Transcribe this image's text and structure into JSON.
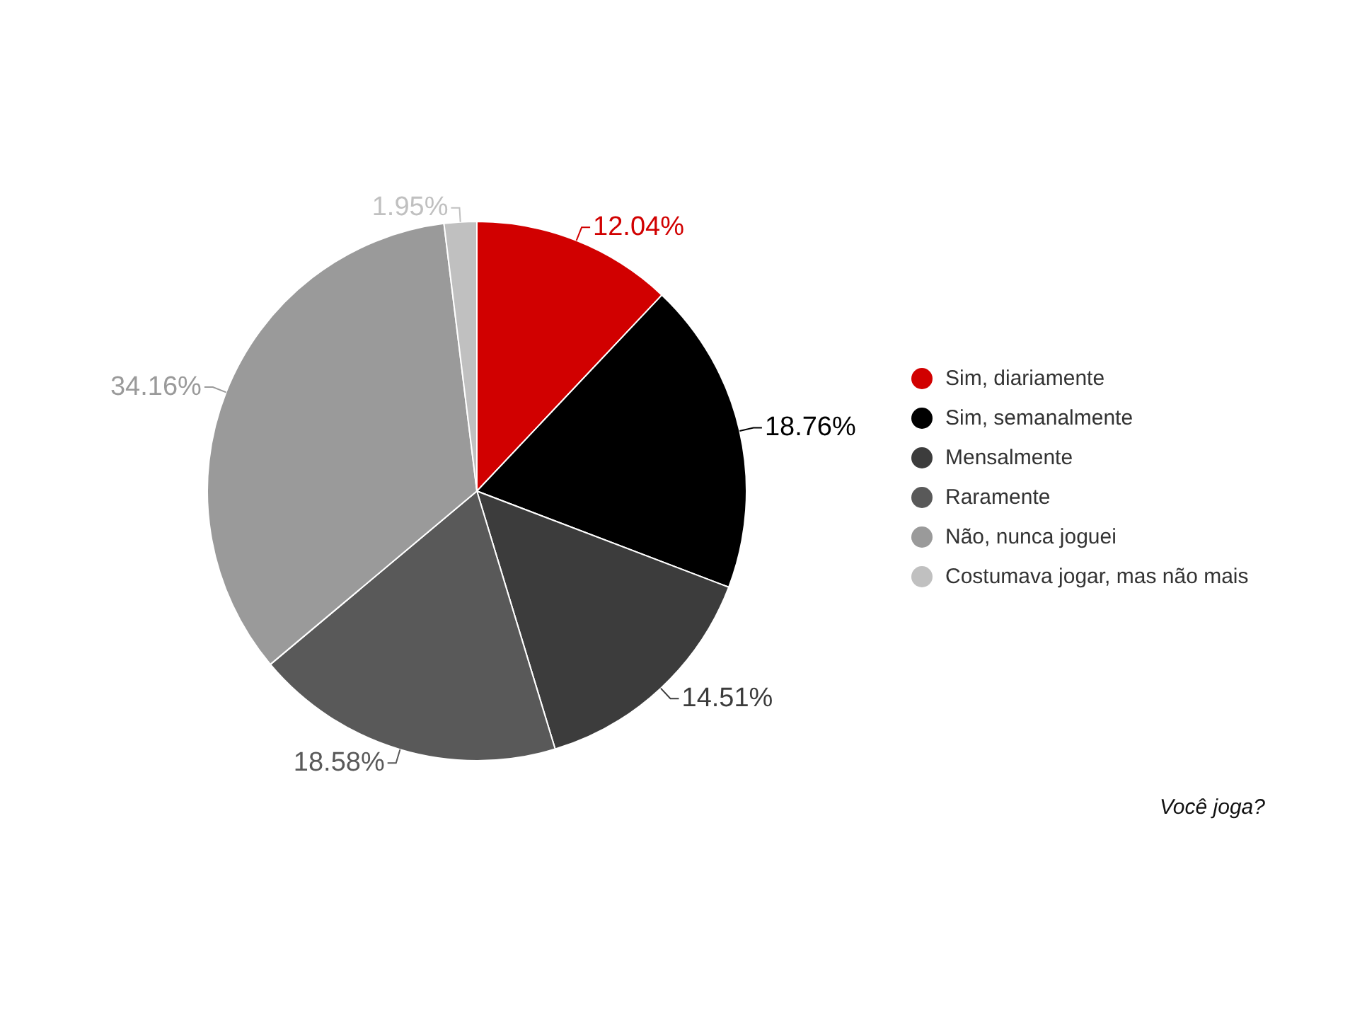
{
  "chart_data": {
    "type": "pie",
    "categories": [
      "Sim, diariamente",
      "Sim, semanalmente",
      "Mensalmente",
      "Raramente",
      "Não, nunca joguei",
      "Costumava jogar, mas não mais"
    ],
    "values": [
      12.04,
      18.76,
      14.51,
      18.58,
      34.16,
      1.95
    ],
    "colors": [
      "#d10000",
      "#000000",
      "#3c3c3c",
      "#595959",
      "#9a9a9a",
      "#c0c0c0"
    ],
    "value_labels": [
      "12.04%",
      "18.76%",
      "14.51%",
      "18.58%",
      "34.16%",
      "1.95%"
    ],
    "legend": "right",
    "annotations": [
      "Você joga?"
    ]
  }
}
